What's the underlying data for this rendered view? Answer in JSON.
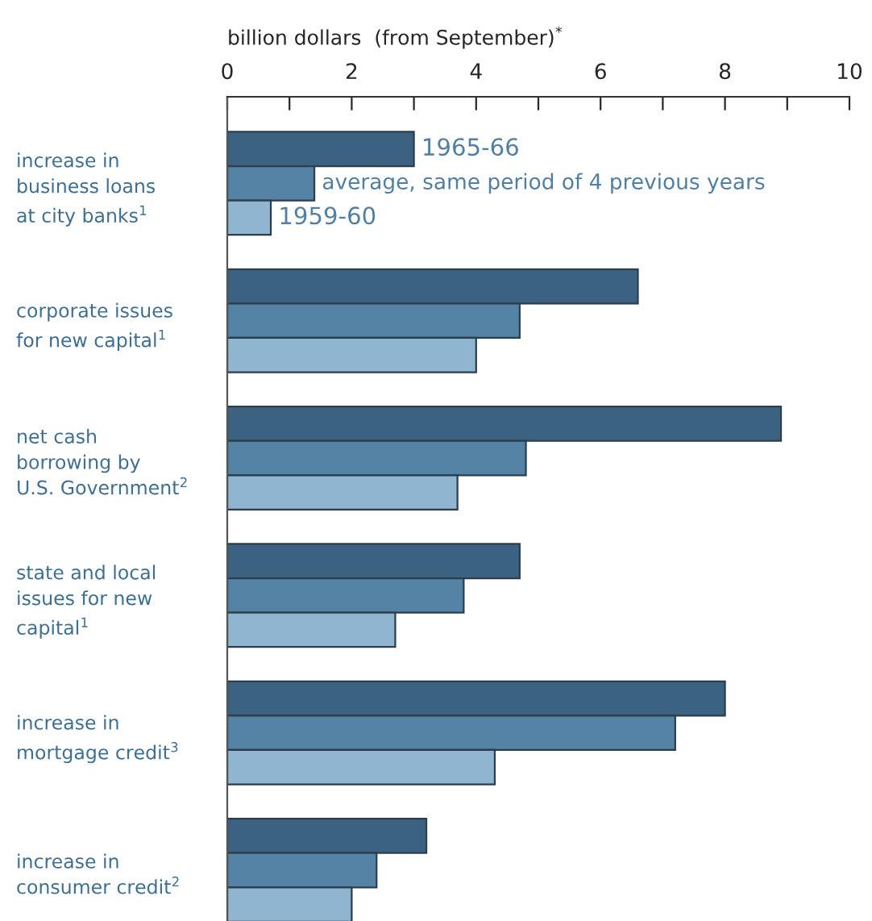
{
  "chart_data": {
    "type": "bar",
    "orientation": "horizontal",
    "xlabel": "billion dollars  (from September)$^{*}$",
    "categories": [
      "increase in\nbusiness loans\nat city banks$^{1}$",
      "corporate issues\nfor new capital$^{1}$",
      "net cash\nborrowing by\nU.S. Government$^{2}$",
      "state and local\nissues for new\ncapital$^{1}$",
      "increase in\nmortgage credit$^{3}$",
      "increase in\nconsumer credit$^{2}$"
    ],
    "series": [
      {
        "name": "1965-66",
        "color": "#3b6381",
        "values": [
          3.0,
          6.6,
          8.9,
          4.7,
          8.0,
          3.2
        ]
      },
      {
        "name": "average, same period of 4 previous years",
        "color": "#5483a6",
        "values": [
          1.4,
          4.7,
          4.8,
          3.8,
          7.2,
          2.4
        ]
      },
      {
        "name": "1959-60",
        "color": "#8fb5d0",
        "values": [
          0.7,
          4.0,
          3.7,
          2.7,
          4.3,
          2.0
        ]
      }
    ],
    "xlim": [
      0,
      10
    ],
    "xticks": [
      0,
      {
        "value": 1,
        "label": null
      },
      2,
      {
        "value": 3,
        "label": null
      },
      4,
      {
        "value": 5,
        "label": null
      },
      6,
      {
        "value": 7,
        "label": null
      },
      8,
      {
        "value": 9,
        "label": null
      },
      10
    ],
    "grid": false,
    "legend": false
  }
}
